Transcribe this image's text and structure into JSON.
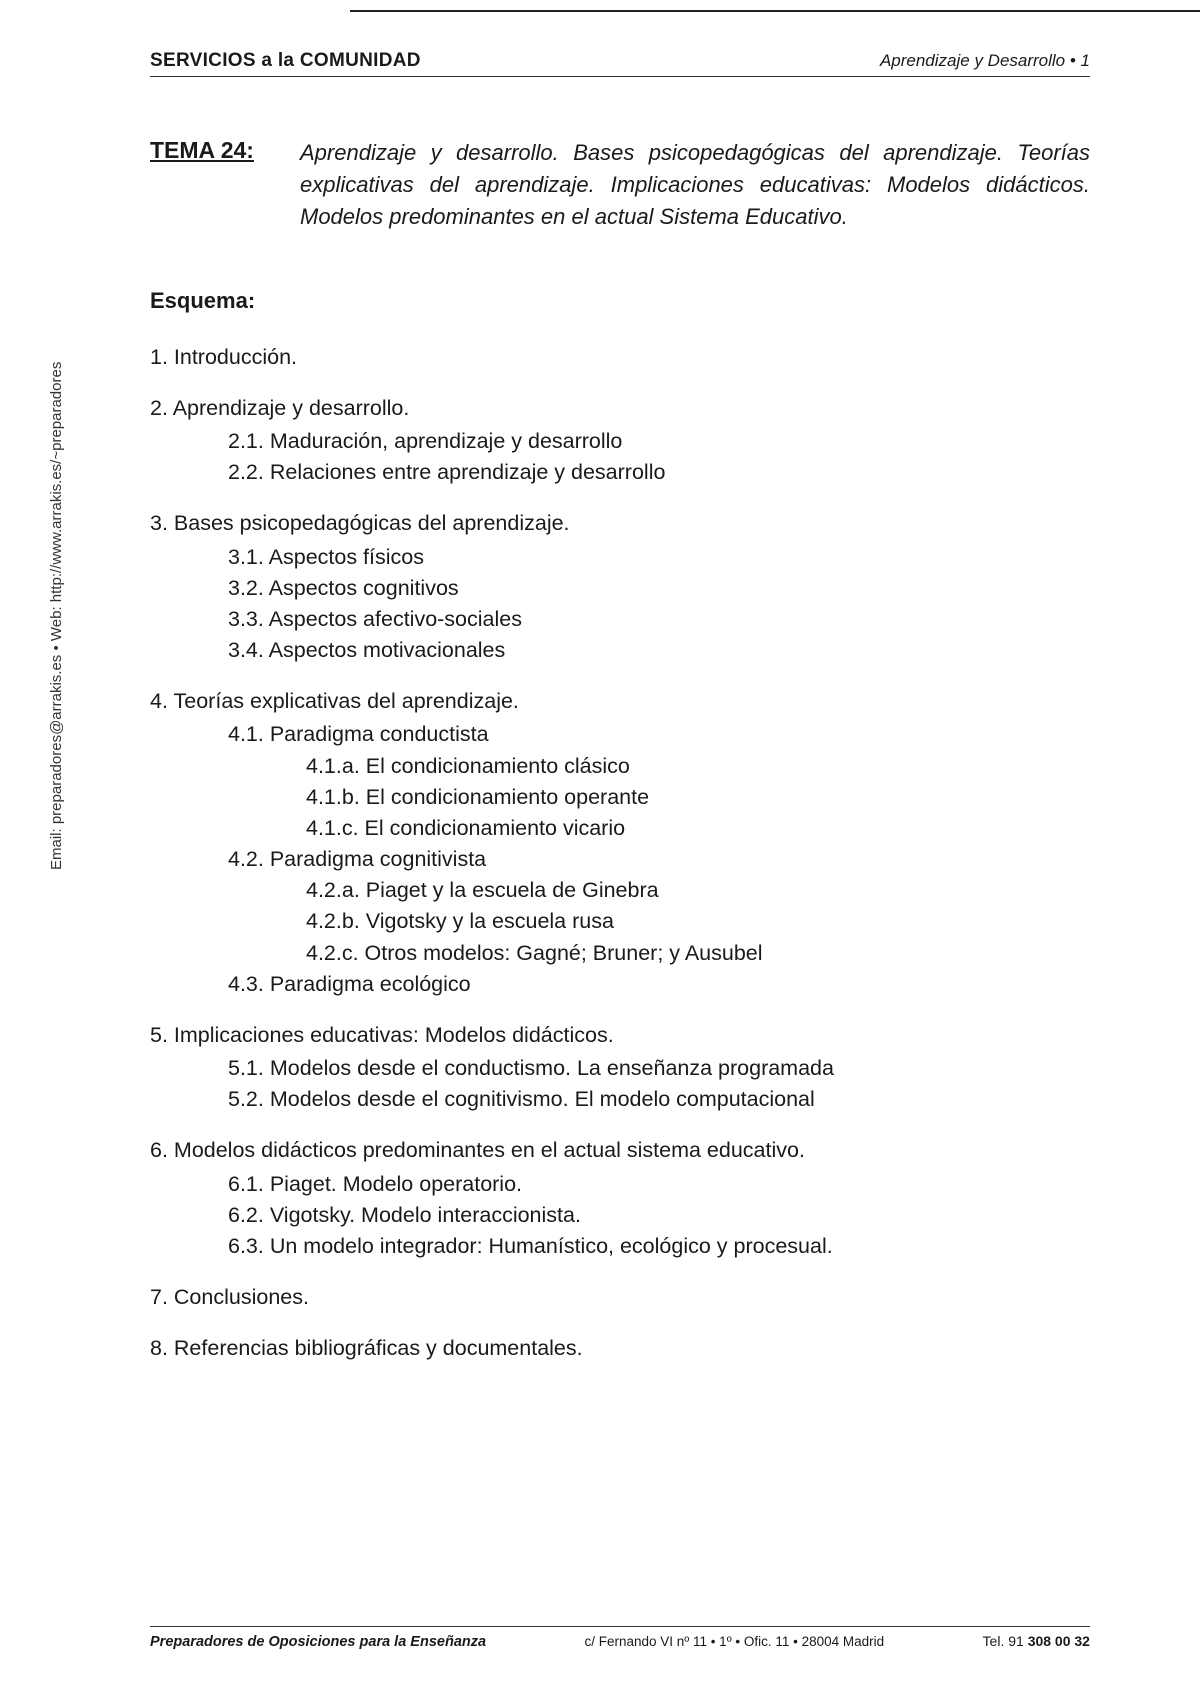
{
  "header": {
    "left": "SERVICIOS a la COMUNIDAD",
    "right": "Aprendizaje y Desarrollo • 1"
  },
  "tema": {
    "label": "TEMA 24:",
    "description": "Aprendizaje y desarrollo. Bases psicopedagógicas del aprendizaje. Teorías explicativas del aprendizaje. Implicaciones educativas: Modelos didácticos. Modelos predominantes en el actual Sistema Educativo."
  },
  "esquema_title": "Esquema:",
  "outline": {
    "s1": "1. Introducción.",
    "s2": "2. Aprendizaje y desarrollo.",
    "s2_1": "2.1. Maduración, aprendizaje y desarrollo",
    "s2_2": "2.2. Relaciones entre aprendizaje y desarrollo",
    "s3": "3. Bases psicopedagógicas del aprendizaje.",
    "s3_1": "3.1. Aspectos físicos",
    "s3_2": "3.2. Aspectos cognitivos",
    "s3_3": "3.3. Aspectos afectivo-sociales",
    "s3_4": "3.4. Aspectos motivacionales",
    "s4": "4. Teorías explicativas del aprendizaje.",
    "s4_1": "4.1. Paradigma conductista",
    "s4_1_a": "4.1.a. El condicionamiento clásico",
    "s4_1_b": "4.1.b. El condicionamiento operante",
    "s4_1_c": "4.1.c. El condicionamiento vicario",
    "s4_2": "4.2. Paradigma cognitivista",
    "s4_2_a": "4.2.a. Piaget y la escuela de Ginebra",
    "s4_2_b": "4.2.b. Vigotsky y la escuela rusa",
    "s4_2_c": "4.2.c. Otros modelos: Gagné; Bruner; y Ausubel",
    "s4_3": "4.3. Paradigma ecológico",
    "s5": "5. Implicaciones educativas: Modelos didácticos.",
    "s5_1": "5.1. Modelos desde el conductismo. La enseñanza programada",
    "s5_2": "5.2. Modelos desde el cognitivismo. El modelo computacional",
    "s6": "6. Modelos didácticos predominantes en el actual sistema educativo.",
    "s6_1": "6.1. Piaget. Modelo operatorio.",
    "s6_2": "6.2. Vigotsky. Modelo interaccionista.",
    "s6_3": "6.3. Un modelo  integrador: Humanístico, ecológico y procesual.",
    "s7": "7. Conclusiones.",
    "s8": "8. Referencias bibliográficas y documentales."
  },
  "sidebar": "Email: preparadores@arrakis.es   •   Web: http://www.arrakis.es/~preparadores",
  "footer": {
    "left": "Preparadores de Oposiciones para la Enseñanza",
    "center": "c/ Fernando VI nº 11 • 1º • Ofic. 11 • 28004 Madrid",
    "right_label": "Tel. 91 ",
    "right_phone": "308 00 32"
  }
}
